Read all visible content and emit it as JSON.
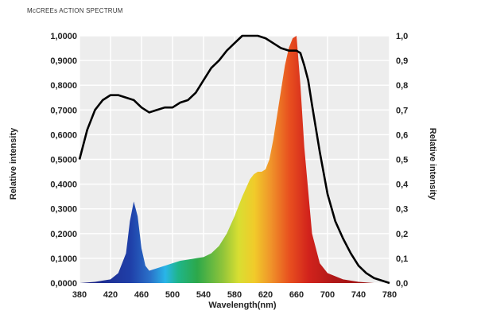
{
  "chart_data": {
    "type": "area",
    "title": "McCREEs ACTION SPECTRUM",
    "xlabel": "Wavelength(nm)",
    "ylabel": "Relative intensity",
    "ylabel_right": "Relative intensity",
    "xlim": [
      380,
      780
    ],
    "ylim": [
      0,
      1
    ],
    "x_ticks": [
      "380",
      "420",
      "460",
      "500",
      "540",
      "580",
      "620",
      "660",
      "700",
      "740",
      "780"
    ],
    "y_ticks_left": [
      "0,0000",
      "0,1000",
      "0,2000",
      "0,3000",
      "0,4000",
      "0,5000",
      "0,6000",
      "0,7000",
      "0,8000",
      "0,9000",
      "1,0000"
    ],
    "y_ticks_right": [
      "0,0",
      "0,1",
      "0,2",
      "0,3",
      "0,4",
      "0,5",
      "0,6",
      "0,7",
      "0,8",
      "0,9",
      "1,0"
    ],
    "grid": true,
    "series": [
      {
        "type": "area",
        "color_fill": "spectrum",
        "x": [
          380,
          400,
          420,
          430,
          440,
          445,
          450,
          455,
          460,
          465,
          470,
          480,
          490,
          500,
          510,
          520,
          530,
          540,
          550,
          560,
          570,
          580,
          590,
          600,
          605,
          610,
          615,
          620,
          625,
          630,
          635,
          640,
          645,
          650,
          655,
          660,
          665,
          670,
          680,
          690,
          700,
          720,
          740,
          760,
          780
        ],
        "y": [
          0.0,
          0.005,
          0.015,
          0.04,
          0.12,
          0.25,
          0.33,
          0.27,
          0.14,
          0.07,
          0.05,
          0.06,
          0.07,
          0.08,
          0.09,
          0.095,
          0.1,
          0.105,
          0.12,
          0.15,
          0.2,
          0.27,
          0.35,
          0.42,
          0.44,
          0.45,
          0.45,
          0.46,
          0.5,
          0.58,
          0.68,
          0.78,
          0.88,
          0.95,
          0.99,
          1.0,
          0.8,
          0.55,
          0.2,
          0.08,
          0.04,
          0.015,
          0.005,
          0.0,
          0.0
        ]
      },
      {
        "type": "line",
        "color": "#000000",
        "x": [
          380,
          390,
          400,
          410,
          420,
          430,
          440,
          450,
          460,
          470,
          480,
          490,
          500,
          510,
          520,
          530,
          540,
          550,
          560,
          570,
          580,
          590,
          600,
          610,
          620,
          630,
          640,
          650,
          660,
          665,
          670,
          675,
          680,
          690,
          700,
          710,
          720,
          730,
          740,
          750,
          760,
          770,
          780
        ],
        "y": [
          0.5,
          0.62,
          0.7,
          0.74,
          0.76,
          0.76,
          0.75,
          0.74,
          0.71,
          0.69,
          0.7,
          0.71,
          0.71,
          0.73,
          0.74,
          0.77,
          0.82,
          0.87,
          0.9,
          0.94,
          0.97,
          1.0,
          1.0,
          1.0,
          0.99,
          0.97,
          0.95,
          0.94,
          0.94,
          0.93,
          0.88,
          0.82,
          0.72,
          0.53,
          0.36,
          0.25,
          0.18,
          0.12,
          0.07,
          0.04,
          0.02,
          0.01,
          0.0
        ]
      }
    ]
  }
}
